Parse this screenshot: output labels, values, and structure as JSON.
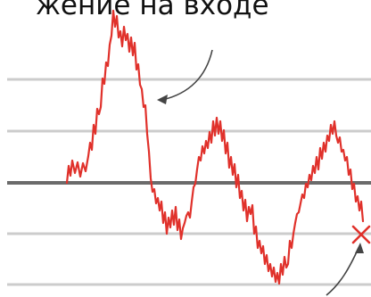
{
  "title": "жение на входе",
  "colors": {
    "signal": "#e0312b",
    "gridline": "#cccccc",
    "baseline": "#6b6b6b",
    "arrow": "#444444",
    "cross": "#e0312b",
    "text": "#111111"
  },
  "annotations": {
    "arrow_top": "curved-arrow-icon",
    "arrow_bottom": "curved-arrow-icon",
    "cross": "cross-mark-icon"
  }
}
